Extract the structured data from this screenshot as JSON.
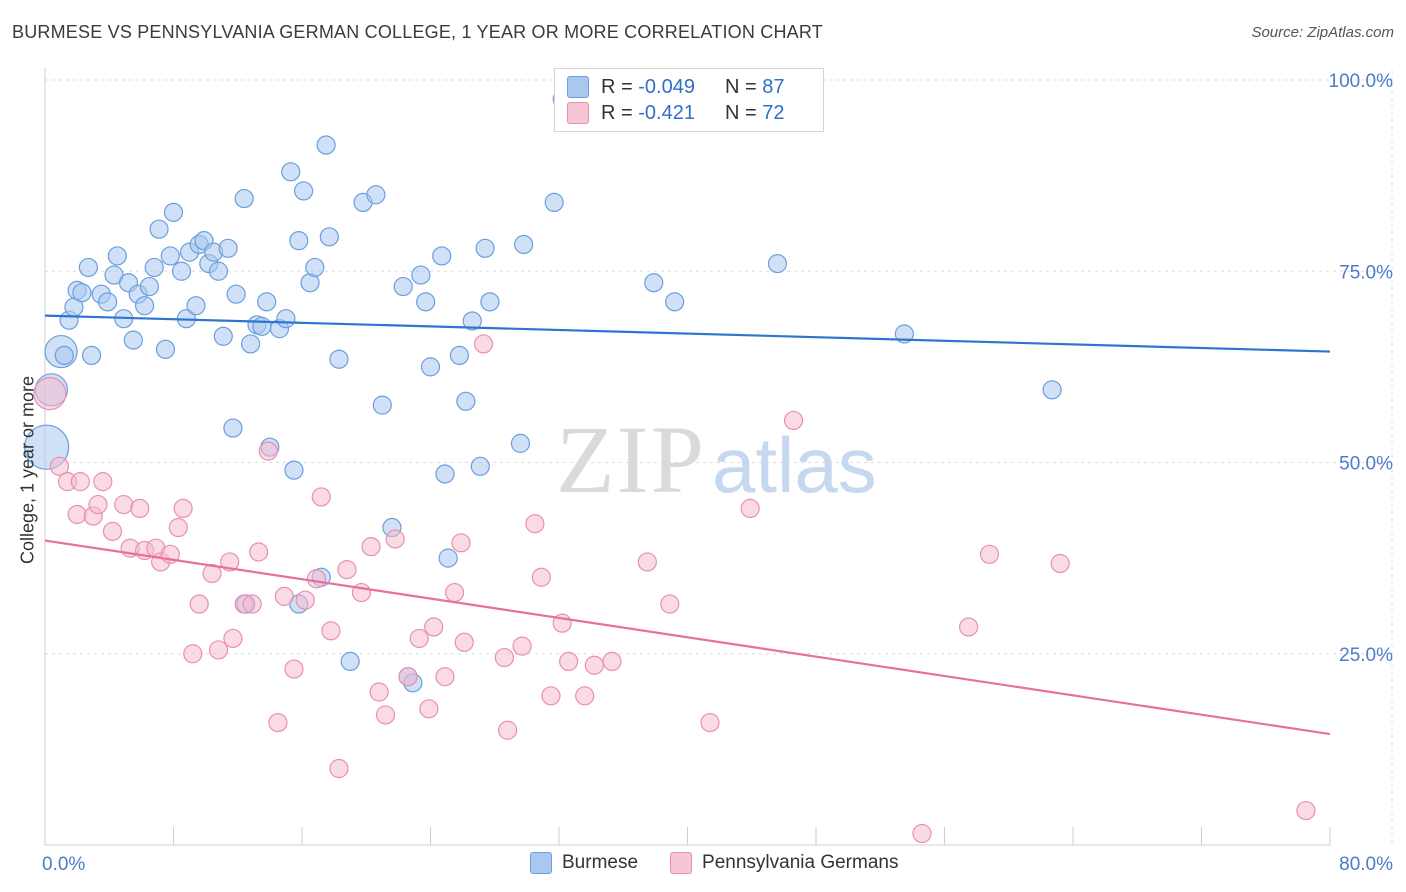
{
  "header": {
    "title": "BURMESE VS PENNSYLVANIA GERMAN COLLEGE, 1 YEAR OR MORE CORRELATION CHART",
    "source": "Source: ZipAtlas.com"
  },
  "watermark": {
    "zip": "ZIP",
    "atlas": "atlas"
  },
  "legend_top": [
    {
      "r_label": "R = ",
      "r_value": "-0.049",
      "n_label": "N = ",
      "n_value": "87"
    },
    {
      "r_label": "R = ",
      "r_value": "-0.421",
      "n_label": "N = ",
      "n_value": "72"
    }
  ],
  "legend_bottom": [
    "Burmese",
    "Pennsylvania Germans"
  ],
  "colors": {
    "blue_fill": "#a9c8f0",
    "blue_stroke": "#6a9fdc",
    "blue_line": "#2f75d0",
    "pink_fill": "#f5bcd0",
    "pink_stroke": "#e890b0",
    "pink_line": "#e8709a",
    "tick_label": "#4a7cc9",
    "grid": "#dcdcdc"
  },
  "chart_data": {
    "type": "scatter",
    "title": "BURMESE VS PENNSYLVANIA GERMAN COLLEGE, 1 YEAR OR MORE CORRELATION CHART",
    "xlabel": "",
    "ylabel": "College, 1 year or more",
    "xlim": [
      0,
      80
    ],
    "ylim": [
      0,
      100
    ],
    "x_tick_labels": [
      "0.0%",
      "80.0%"
    ],
    "y_tick_labels": [
      "100.0%",
      "75.0%",
      "50.0%",
      "25.0%"
    ],
    "y_ticks": [
      100,
      75,
      50,
      25
    ],
    "grid": true,
    "series": [
      {
        "name": "Burmese",
        "R": -0.049,
        "N": 87,
        "trend": [
          [
            0,
            69.2
          ],
          [
            80,
            64.5
          ]
        ],
        "points": [
          [
            0.1,
            52.0
          ],
          [
            0.4,
            59.5
          ],
          [
            1.0,
            64.5
          ],
          [
            1.2,
            64.0
          ],
          [
            1.5,
            68.6
          ],
          [
            1.8,
            70.3
          ],
          [
            2.0,
            72.5
          ],
          [
            2.3,
            72.2
          ],
          [
            2.7,
            75.5
          ],
          [
            2.9,
            64.0
          ],
          [
            3.5,
            72.0
          ],
          [
            3.9,
            71.0
          ],
          [
            4.3,
            74.5
          ],
          [
            4.5,
            77.0
          ],
          [
            4.9,
            68.8
          ],
          [
            5.2,
            73.5
          ],
          [
            5.5,
            66.0
          ],
          [
            5.8,
            72.0
          ],
          [
            6.2,
            70.5
          ],
          [
            6.5,
            73.0
          ],
          [
            6.8,
            75.5
          ],
          [
            7.1,
            80.5
          ],
          [
            7.5,
            64.8
          ],
          [
            7.8,
            77.0
          ],
          [
            8.0,
            82.7
          ],
          [
            8.5,
            75.0
          ],
          [
            8.8,
            68.8
          ],
          [
            9.0,
            77.5
          ],
          [
            9.4,
            70.5
          ],
          [
            9.6,
            78.5
          ],
          [
            9.9,
            79.0
          ],
          [
            10.2,
            76.0
          ],
          [
            10.5,
            77.5
          ],
          [
            10.8,
            75.0
          ],
          [
            11.1,
            66.5
          ],
          [
            11.4,
            78.0
          ],
          [
            11.7,
            54.5
          ],
          [
            11.9,
            72.0
          ],
          [
            12.4,
            84.5
          ],
          [
            12.8,
            65.5
          ],
          [
            13.2,
            68.0
          ],
          [
            13.5,
            67.8
          ],
          [
            13.8,
            71.0
          ],
          [
            14.0,
            52.0
          ],
          [
            14.6,
            67.5
          ],
          [
            15.0,
            68.8
          ],
          [
            15.3,
            88.0
          ],
          [
            15.5,
            49.0
          ],
          [
            15.8,
            79.0
          ],
          [
            16.1,
            85.5
          ],
          [
            16.5,
            73.5
          ],
          [
            16.8,
            75.5
          ],
          [
            17.5,
            91.5
          ],
          [
            17.7,
            79.5
          ],
          [
            18.3,
            63.5
          ],
          [
            19.0,
            24.0
          ],
          [
            19.8,
            84.0
          ],
          [
            20.6,
            85.0
          ],
          [
            21.0,
            57.5
          ],
          [
            21.6,
            41.5
          ],
          [
            22.3,
            73.0
          ],
          [
            22.6,
            22.0
          ],
          [
            22.9,
            21.2
          ],
          [
            23.4,
            74.5
          ],
          [
            23.7,
            71.0
          ],
          [
            24.0,
            62.5
          ],
          [
            24.7,
            77.0
          ],
          [
            24.9,
            48.5
          ],
          [
            25.1,
            37.5
          ],
          [
            25.8,
            64.0
          ],
          [
            26.2,
            58.0
          ],
          [
            26.6,
            68.5
          ],
          [
            27.1,
            49.5
          ],
          [
            27.4,
            78.0
          ],
          [
            27.7,
            71.0
          ],
          [
            29.6,
            52.5
          ],
          [
            29.8,
            78.5
          ],
          [
            31.7,
            84.0
          ],
          [
            32.2,
            97.5
          ],
          [
            37.9,
            73.5
          ],
          [
            39.2,
            71.0
          ],
          [
            45.6,
            76.0
          ],
          [
            53.5,
            66.8
          ],
          [
            62.7,
            59.5
          ],
          [
            15.8,
            31.5
          ],
          [
            17.2,
            35.0
          ],
          [
            12.5,
            31.5
          ]
        ],
        "big_points": [
          [
            0.1,
            52.0
          ],
          [
            0.4,
            59.5
          ],
          [
            1.0,
            64.5
          ]
        ]
      },
      {
        "name": "Pennsylvania Germans",
        "R": -0.421,
        "N": 72,
        "trend": [
          [
            0,
            39.8
          ],
          [
            80,
            14.5
          ]
        ],
        "points": [
          [
            0.3,
            59.0
          ],
          [
            0.9,
            49.5
          ],
          [
            1.4,
            47.5
          ],
          [
            2.0,
            43.2
          ],
          [
            2.2,
            47.5
          ],
          [
            3.0,
            43.0
          ],
          [
            3.3,
            44.5
          ],
          [
            3.6,
            47.5
          ],
          [
            4.2,
            41.0
          ],
          [
            4.9,
            44.5
          ],
          [
            5.3,
            38.8
          ],
          [
            5.9,
            44.0
          ],
          [
            6.2,
            38.5
          ],
          [
            6.9,
            38.8
          ],
          [
            7.2,
            37.0
          ],
          [
            7.8,
            38.0
          ],
          [
            8.3,
            41.5
          ],
          [
            8.6,
            44.0
          ],
          [
            9.2,
            25.0
          ],
          [
            9.6,
            31.5
          ],
          [
            10.4,
            35.5
          ],
          [
            10.8,
            25.5
          ],
          [
            11.5,
            37.0
          ],
          [
            11.7,
            27.0
          ],
          [
            12.4,
            31.5
          ],
          [
            12.9,
            31.5
          ],
          [
            13.3,
            38.3
          ],
          [
            13.9,
            51.5
          ],
          [
            14.5,
            16.0
          ],
          [
            14.9,
            32.5
          ],
          [
            15.5,
            23.0
          ],
          [
            16.2,
            32.0
          ],
          [
            16.9,
            34.8
          ],
          [
            17.2,
            45.5
          ],
          [
            17.8,
            28.0
          ],
          [
            18.3,
            10.0
          ],
          [
            18.8,
            36.0
          ],
          [
            19.7,
            33.0
          ],
          [
            20.3,
            39.0
          ],
          [
            20.8,
            20.0
          ],
          [
            21.2,
            17.0
          ],
          [
            21.8,
            40.0
          ],
          [
            22.6,
            22.0
          ],
          [
            23.3,
            27.0
          ],
          [
            23.9,
            17.8
          ],
          [
            24.2,
            28.5
          ],
          [
            24.9,
            22.0
          ],
          [
            25.5,
            33.0
          ],
          [
            25.9,
            39.5
          ],
          [
            26.1,
            26.5
          ],
          [
            27.3,
            65.5
          ],
          [
            28.6,
            24.5
          ],
          [
            28.8,
            15.0
          ],
          [
            29.7,
            26.0
          ],
          [
            30.5,
            42.0
          ],
          [
            30.9,
            35.0
          ],
          [
            31.5,
            19.5
          ],
          [
            32.2,
            29.0
          ],
          [
            32.6,
            24.0
          ],
          [
            33.6,
            19.5
          ],
          [
            34.2,
            23.5
          ],
          [
            35.3,
            24.0
          ],
          [
            37.5,
            37.0
          ],
          [
            38.9,
            31.5
          ],
          [
            41.4,
            16.0
          ],
          [
            43.9,
            44.0
          ],
          [
            46.6,
            55.5
          ],
          [
            57.5,
            28.5
          ],
          [
            58.8,
            38.0
          ],
          [
            63.2,
            36.8
          ],
          [
            78.5,
            4.5
          ],
          [
            54.6,
            1.5
          ]
        ],
        "big_points": [
          [
            0.3,
            59.0
          ]
        ]
      }
    ]
  }
}
